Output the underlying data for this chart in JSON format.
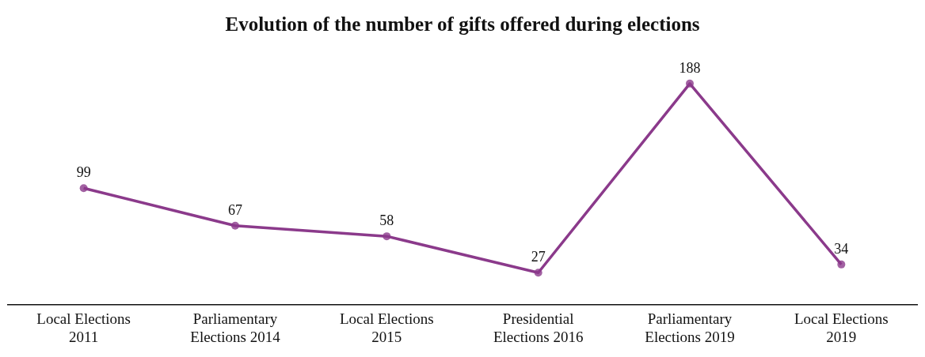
{
  "chart_data": {
    "type": "line",
    "title": "Evolution of the number of gifts offered during elections",
    "categories": [
      "Local Elections 2011",
      "Parliamentary Elections 2014",
      "Local Elections 2015",
      "Presidential Elections 2016",
      "Parliamentary Elections 2019",
      "Local Elections 2019"
    ],
    "values": [
      99,
      67,
      58,
      27,
      188,
      34
    ],
    "color": "#8b3a8b",
    "marker": "circle",
    "data_labels": true,
    "grid": false,
    "legend": false,
    "tick_labels": "x"
  }
}
